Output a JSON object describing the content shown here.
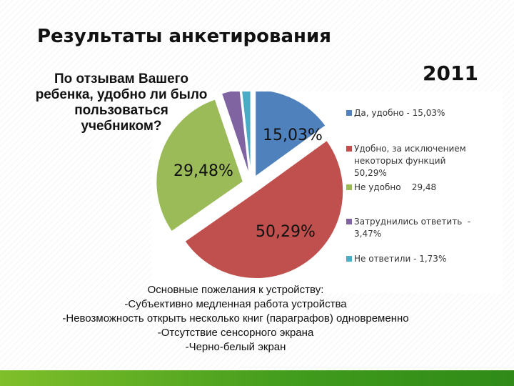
{
  "slide": {
    "title": "Результаты анкетирования",
    "year": "2011",
    "question_lines": [
      "По отзывам Вашего",
      "ребенка, удобно ли было",
      "пользоваться",
      "учебником?"
    ],
    "notes": [
      "Основные пожелания к устройству:",
      "-Субъективно медленная работа устройства",
      "-Невозможность открыть несколько книг (параграфов) одновременно",
      "-Отсутствие сенсорного экрана",
      "-Черно-белый экран"
    ]
  },
  "chart_data": {
    "type": "pie",
    "title": "",
    "slices": [
      {
        "name": "Да, удобно",
        "value": 15.03,
        "label": "15,03%",
        "color": "#4f81bd"
      },
      {
        "name": "Удобно, за исключением некоторых функций",
        "value": 50.29,
        "label": "50,29%",
        "color": "#c0504d"
      },
      {
        "name": "Не удобно",
        "value": 29.48,
        "label": "29,48%",
        "color": "#9bbb59"
      },
      {
        "name": "Затруднились ответить",
        "value": 3.47,
        "label": "",
        "color": "#8064a2"
      },
      {
        "name": "Не ответили",
        "value": 1.73,
        "label": "",
        "color": "#4bacc6"
      }
    ],
    "legend": {
      "position": "right",
      "entries": [
        {
          "lines": [
            "Да, удобно - 15,03%"
          ],
          "color": "#4f81bd"
        },
        {
          "lines": [
            "Удобно, за исключением",
            "некоторых функций",
            "50,29%"
          ],
          "color": "#c0504d"
        },
        {
          "lines": [
            "Не удобно    29,48"
          ],
          "color": "#9bbb59"
        },
        {
          "lines": [
            "Затруднились ответить  -",
            "3,47%"
          ],
          "color": "#8064a2"
        },
        {
          "lines": [
            "Не ответили - 1,73%"
          ],
          "color": "#4bacc6"
        }
      ]
    }
  }
}
